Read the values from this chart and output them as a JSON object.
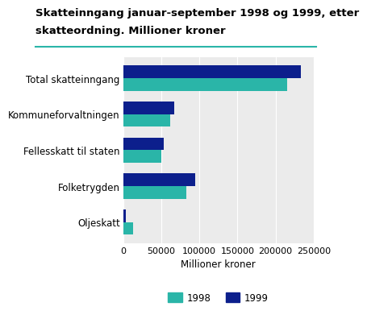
{
  "title_line1": "Skatteinngang januar-september 1998 og 1999, etter",
  "title_line2": "skatteordning. Millioner kroner",
  "categories": [
    "Total skatteinngang",
    "Kommuneforvaltningen",
    "Fellesskatt til staten",
    "Folketrygden",
    "Oljeskatt"
  ],
  "values_1998": [
    215000,
    62000,
    50000,
    83000,
    13000
  ],
  "values_1999": [
    233000,
    67000,
    53000,
    95000,
    3500
  ],
  "color_1998": "#2ab5a8",
  "color_1999": "#0c1f8c",
  "xlabel": "Millioner kroner",
  "xlim": [
    0,
    250000
  ],
  "xticks": [
    0,
    50000,
    100000,
    150000,
    200000,
    250000
  ],
  "xtick_labels": [
    "0",
    "50000",
    "100000",
    "150000",
    "200000",
    "250000"
  ],
  "legend_labels": [
    "1998",
    "1999"
  ],
  "title_fontsize": 9.5,
  "label_fontsize": 8.5,
  "tick_fontsize": 8,
  "background_color": "#ffffff",
  "grid_color": "#d0d0d0",
  "plot_bg_color": "#ebebeb",
  "header_line_color": "#2ab5a8"
}
